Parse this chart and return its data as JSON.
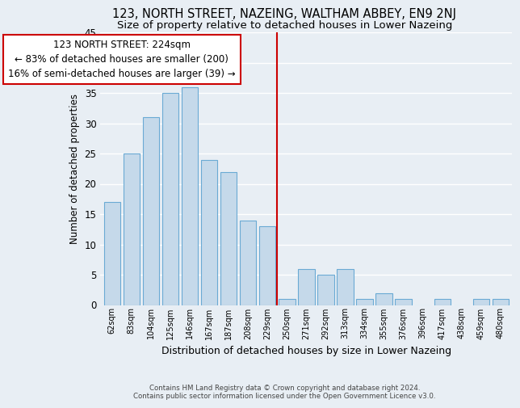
{
  "title": "123, NORTH STREET, NAZEING, WALTHAM ABBEY, EN9 2NJ",
  "subtitle": "Size of property relative to detached houses in Lower Nazeing",
  "xlabel": "Distribution of detached houses by size in Lower Nazeing",
  "ylabel": "Number of detached properties",
  "categories": [
    "62sqm",
    "83sqm",
    "104sqm",
    "125sqm",
    "146sqm",
    "167sqm",
    "187sqm",
    "208sqm",
    "229sqm",
    "250sqm",
    "271sqm",
    "292sqm",
    "313sqm",
    "334sqm",
    "355sqm",
    "376sqm",
    "396sqm",
    "417sqm",
    "438sqm",
    "459sqm",
    "480sqm"
  ],
  "values": [
    17,
    25,
    31,
    35,
    36,
    24,
    22,
    14,
    13,
    1,
    6,
    5,
    6,
    1,
    2,
    1,
    0,
    1,
    0,
    1,
    1
  ],
  "bar_color": "#c5d9ea",
  "bar_edge_color": "#6aaad4",
  "vline_x_index": 8.5,
  "vline_color": "#cc0000",
  "annotation_title": "123 NORTH STREET: 224sqm",
  "annotation_line1": "← 83% of detached houses are smaller (200)",
  "annotation_line2": "16% of semi-detached houses are larger (39) →",
  "annotation_box_color": "#ffffff",
  "annotation_box_edge": "#cc0000",
  "ylim": [
    0,
    45
  ],
  "yticks": [
    0,
    5,
    10,
    15,
    20,
    25,
    30,
    35,
    40,
    45
  ],
  "footer_line1": "Contains HM Land Registry data © Crown copyright and database right 2024.",
  "footer_line2": "Contains public sector information licensed under the Open Government Licence v3.0.",
  "bg_color": "#e8eef4",
  "grid_color": "#ffffff",
  "title_fontsize": 10.5,
  "subtitle_fontsize": 9.5,
  "annotation_fontsize": 8.5,
  "ylabel_fontsize": 8.5,
  "xlabel_fontsize": 9,
  "ytick_fontsize": 8.5,
  "xtick_fontsize": 7,
  "footer_fontsize": 6.2
}
